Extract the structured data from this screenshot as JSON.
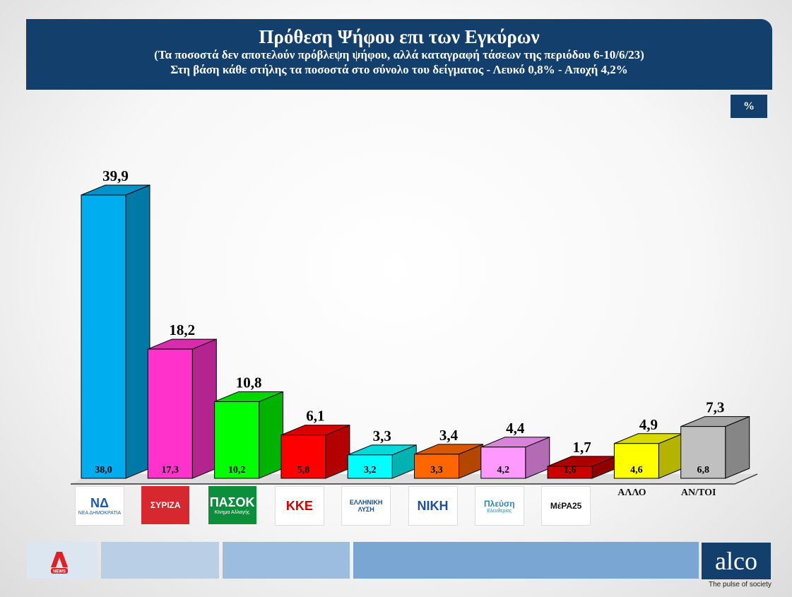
{
  "header": {
    "title": "Πρόθεση Ψήφου επι των Εγκύρων",
    "subtitle1": "(Τα ποσοστά δεν αποτελούν πρόβλεψη ψήφου, αλλά καταγραφή τάσεων της περιόδου  6-10/6/23)",
    "subtitle2": "Στη βάση κάθε στήλης τα ποσοστά στο σύνολο του δείγματος - Λευκό 0,8% - Αποχή 4,2%"
  },
  "unit_badge": "%",
  "chart_data": {
    "type": "bar",
    "categories": [
      "ΝΔ",
      "ΣΥΡΙΖΑ",
      "ΠΑΣΟΚ",
      "ΚΚΕ",
      "ΕΛΛΗΝΙΚΗ ΛΥΣΗ",
      "ΝΙΚΗ",
      "Πλεύση Ελευθερίας",
      "ΜέΡΑ25",
      "ΑΛΛΟ",
      "ΑΝ/ΤΟΙ"
    ],
    "series": [
      {
        "values": [
          39.9,
          18.2,
          10.8,
          6.1,
          3.3,
          3.4,
          4.4,
          1.7,
          4.9,
          7.3
        ]
      },
      {
        "values": [
          38.0,
          17.3,
          10.2,
          5.8,
          3.2,
          3.3,
          4.2,
          1.6,
          4.6,
          6.8
        ]
      }
    ],
    "value_labels": [
      "39,9",
      "18,2",
      "10,8",
      "6,1",
      "3,3",
      "3,4",
      "4,4",
      "1,7",
      "4,9",
      "7,3"
    ],
    "base_labels": [
      "38,0",
      "17,3",
      "10,2",
      "5,8",
      "3,2",
      "3,3",
      "4,2",
      "1,6",
      "4,6",
      "6,8"
    ],
    "colors": [
      "#00adef",
      "#ff33cc",
      "#00ff00",
      "#ff0000",
      "#00ffff",
      "#ff6600",
      "#ff99ff",
      "#cc0000",
      "#ffff00",
      "#c0c0c0"
    ],
    "ylim": [
      0,
      40
    ],
    "grid": false,
    "legend": "none"
  },
  "logos": [
    {
      "icon": "nd-logo-icon",
      "text": "ΝΔ",
      "small": "ΝΕΑ ΔΗΜΟΚΡΑΤΙΑ",
      "bg": "#ffffff",
      "fg": "#1b5aa6"
    },
    {
      "icon": "syriza-logo-icon",
      "text": "ΣΥΡΙΖΑ",
      "small": "",
      "bg": "#d8282f",
      "fg": "#ffffff"
    },
    {
      "icon": "pasok-logo-icon",
      "text": "ΠΑΣΟΚ",
      "small": "Κίνημα Αλλαγής",
      "bg": "#0b8f3a",
      "fg": "#ffffff"
    },
    {
      "icon": "kke-logo-icon",
      "text": "ΚΚΕ",
      "small": "",
      "bg": "#ffffff",
      "fg": "#d40000"
    },
    {
      "icon": "elliniki-lysi-logo-icon",
      "text": "ΕΛΛΗΝΙΚΗ ΛΥΣΗ",
      "small": "",
      "bg": "#ffffff",
      "fg": "#1a4f8b"
    },
    {
      "icon": "niki-logo-icon",
      "text": "ΝΙΚΗ",
      "small": "",
      "bg": "#ffffff",
      "fg": "#1d4f9c"
    },
    {
      "icon": "plefsi-logo-icon",
      "text": "Πλεύση",
      "small": "Ελευθερίας",
      "bg": "#ffffff",
      "fg": "#2a8bb0"
    },
    {
      "icon": "mera25-logo-icon",
      "text": "ΜέΡΑ25",
      "small": "",
      "bg": "#ffffff",
      "fg": "#111111"
    }
  ],
  "text_categories": [
    "ΑΛΛΟ",
    "ΑΝ/ΤΟΙ"
  ],
  "footer": {
    "alpha_icon": "alpha-news-logo-icon",
    "alpha_text": "NEWS",
    "brand": "alco",
    "tagline": "The pulse of society"
  }
}
